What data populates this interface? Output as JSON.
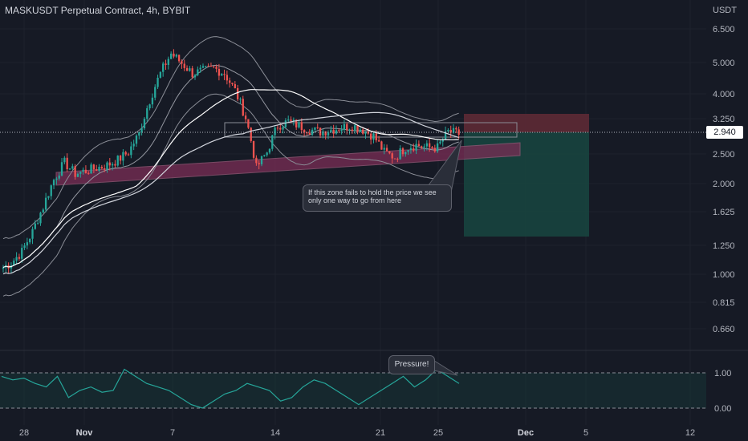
{
  "header": {
    "title": "MASKUSDT Perpetual Contract, 4h, BYBIT"
  },
  "price_axis": {
    "currency": "USDT",
    "ticks": [
      "6.500",
      "5.000",
      "4.000",
      "3.250",
      "2.500",
      "2.000",
      "1.625",
      "1.250",
      "1.000",
      "0.815",
      "0.660"
    ],
    "current_price": "2.940"
  },
  "indicator_axis": {
    "ticks": [
      "1.00",
      "0.00"
    ]
  },
  "time_axis": {
    "ticks": [
      {
        "label": "28",
        "bold": false
      },
      {
        "label": "Nov",
        "bold": true
      },
      {
        "label": "7",
        "bold": false
      },
      {
        "label": "14",
        "bold": false
      },
      {
        "label": "21",
        "bold": false
      },
      {
        "label": "25",
        "bold": false
      },
      {
        "label": "Dec",
        "bold": true
      },
      {
        "label": "5",
        "bold": false
      },
      {
        "label": "12",
        "bold": false
      }
    ]
  },
  "annotations": {
    "zone_note": "If this zone fails to hold the price we see only one way to go from here",
    "pressure_note": "Pressure!"
  },
  "colors": {
    "background": "#161a25",
    "up_candle": "#26a69a",
    "down_candle": "#ef5350",
    "zone_fill": "#7a2d55",
    "stop_fill": "#5d2a35",
    "target_fill": "#17443f",
    "indicator_line": "#26a69a"
  },
  "chart_data": {
    "type": "candlestick",
    "title": "MASKUSDT Perpetual Contract, 4h, BYBIT",
    "ylabel": "USDT",
    "y_scale": "log",
    "ylim": [
      0.6,
      7.5
    ],
    "current_price": 2.94,
    "x_ticks": [
      "28",
      "Nov",
      "7",
      "14",
      "21",
      "25",
      "Dec",
      "5",
      "12"
    ],
    "approx_closes": [
      1.05,
      1.1,
      1.2,
      1.4,
      1.7,
      2.1,
      2.4,
      2.2,
      2.25,
      2.3,
      2.35,
      2.45,
      2.6,
      3.0,
      3.9,
      4.8,
      5.6,
      5.2,
      4.8,
      4.9,
      5.0,
      4.8,
      4.2,
      3.4,
      2.3,
      2.6,
      3.2,
      3.3,
      3.2,
      3.1,
      3.05,
      3.1,
      3.15,
      3.2,
      3.1,
      2.95,
      2.6,
      2.5,
      2.7,
      2.75,
      2.7,
      2.7,
      3.05,
      3.0
    ],
    "indicator": {
      "name": "",
      "levels": [
        1.0,
        0.0
      ],
      "approx_values": [
        0.9,
        0.8,
        0.85,
        0.7,
        0.6,
        0.9,
        0.3,
        0.5,
        0.6,
        0.45,
        0.5,
        1.1,
        0.9,
        0.7,
        0.6,
        0.5,
        0.3,
        0.1,
        0.0,
        0.2,
        0.4,
        0.5,
        0.7,
        0.6,
        0.5,
        0.2,
        0.3,
        0.6,
        0.8,
        0.7,
        0.5,
        0.3,
        0.1,
        0.3,
        0.5,
        0.7,
        0.9,
        0.6,
        0.8,
        1.1,
        0.9,
        0.7
      ]
    }
  }
}
